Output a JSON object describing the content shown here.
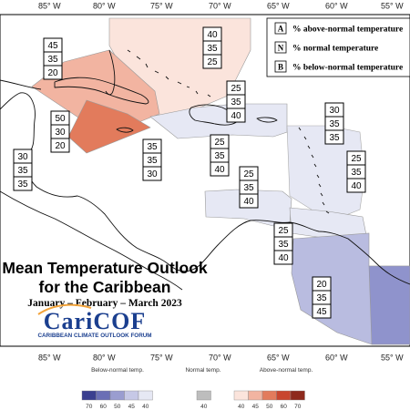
{
  "map": {
    "longitude_labels": [
      "85° W",
      "80° W",
      "75° W",
      "70° W",
      "65° W",
      "60° W",
      "55° W"
    ],
    "title_line1": "Mean Temperature Outlook",
    "title_line2": "for the Caribbean",
    "period": "January – February – March 2023",
    "logo_main": "CariCOF",
    "logo_sub": "CARIBBEAN CLIMATE OUTLOOK FORUM"
  },
  "key": {
    "entries": [
      {
        "letter": "A",
        "text": "% above-normal temperature"
      },
      {
        "letter": "N",
        "text": "% normal temperature"
      },
      {
        "letter": "B",
        "text": "% below-normal temperature"
      }
    ]
  },
  "regions": [
    {
      "name": "bahamas",
      "above": "40",
      "normal": "35",
      "below": "25",
      "color": "#fbe4dc"
    },
    {
      "name": "cuba",
      "above": "45",
      "normal": "35",
      "below": "20",
      "color": "#f2b4a1"
    },
    {
      "name": "belize-yucatan",
      "above": "50",
      "normal": "30",
      "below": "20",
      "color": "#e27b5c"
    },
    {
      "name": "central-america",
      "above": "30",
      "normal": "35",
      "below": "35",
      "color": "#ffffff"
    },
    {
      "name": "jamaica",
      "above": "35",
      "normal": "35",
      "below": "30",
      "color": "#ffffff"
    },
    {
      "name": "hispaniola",
      "above": "25",
      "normal": "35",
      "below": "40",
      "color": "#e6e8f4"
    },
    {
      "name": "puerto-rico-south",
      "above": "25",
      "normal": "35",
      "below": "40",
      "color": "#e6e8f4"
    },
    {
      "name": "leeward",
      "above": "30",
      "normal": "35",
      "below": "35",
      "color": "#ffffff"
    },
    {
      "name": "windward",
      "above": "25",
      "normal": "35",
      "below": "40",
      "color": "#e6e8f4"
    },
    {
      "name": "abc-islands",
      "above": "25",
      "normal": "35",
      "below": "40",
      "color": "#e6e8f4"
    },
    {
      "name": "trinidad",
      "above": "25",
      "normal": "35",
      "below": "40",
      "color": "#e6e8f4"
    },
    {
      "name": "guianas",
      "above": "20",
      "normal": "35",
      "below": "45",
      "color": "#b9bce0"
    }
  ],
  "legend": {
    "below_caption": "Below-normal temp.",
    "normal_caption": "Normal temp.",
    "above_caption": "Above-normal temp.",
    "below_ticks": [
      "70",
      "60",
      "50",
      "45",
      "40"
    ],
    "normal_ticks": [
      "40"
    ],
    "above_ticks": [
      "40",
      "45",
      "50",
      "60",
      "70"
    ],
    "below_colors": [
      "#3a3f8f",
      "#6a6fb5",
      "#9a9dd0",
      "#c6c8e6",
      "#e6e8f4"
    ],
    "normal_color": "#bdbdbd",
    "above_colors": [
      "#fbe4dc",
      "#f2b4a1",
      "#e27b5c",
      "#c8462f",
      "#8e2a1d"
    ]
  }
}
